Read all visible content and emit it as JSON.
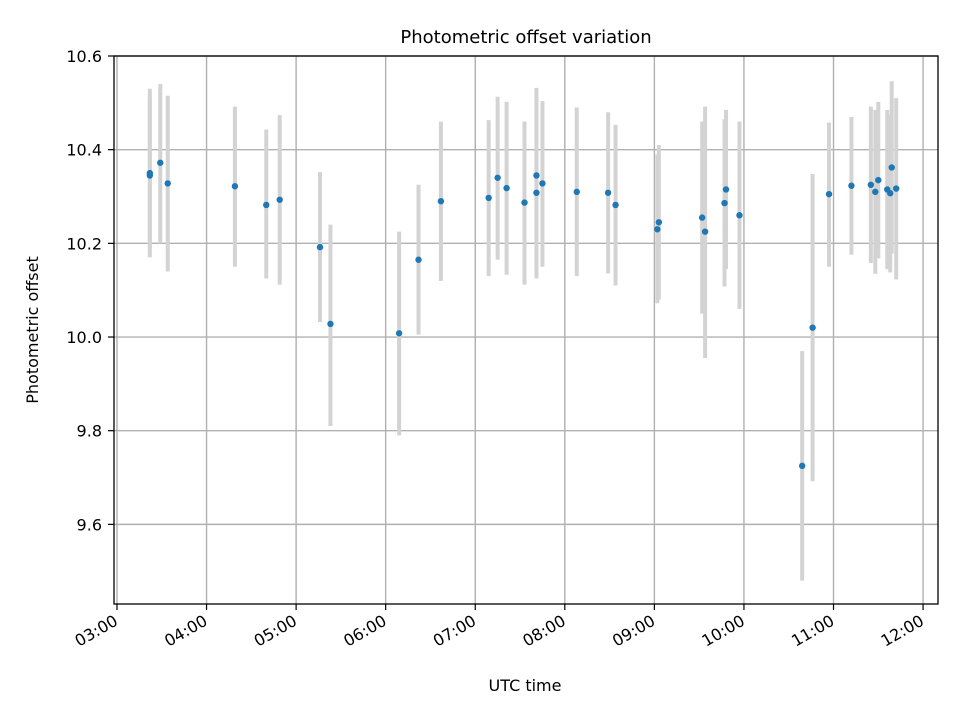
{
  "chart_data": {
    "type": "scatter",
    "title": "Photometric offset variation",
    "xlabel": "UTC time",
    "ylabel": "Photometric offset",
    "x_unit": "UTC time",
    "xlim": [
      "02:58",
      "12:10"
    ],
    "ylim": [
      9.43,
      10.6
    ],
    "x_ticks": [
      "03:00",
      "04:00",
      "05:00",
      "06:00",
      "07:00",
      "08:00",
      "09:00",
      "10:00",
      "11:00",
      "12:00"
    ],
    "y_ticks": [
      9.6,
      9.8,
      10.0,
      10.2,
      10.4,
      10.6
    ],
    "y_tick_labels": [
      "9.6",
      "9.8",
      "10.0",
      "10.2",
      "10.4",
      "10.6"
    ],
    "grid": true,
    "marker_color": "#1f77b4",
    "errorbar_color": "#d3d3d3",
    "points": [
      {
        "x": "03:22",
        "y": 10.345,
        "ylow": 10.17,
        "yhigh": 10.53
      },
      {
        "x": "03:22",
        "y": 10.35,
        "ylow": 10.19,
        "yhigh": 10.51
      },
      {
        "x": "03:29",
        "y": 10.372,
        "ylow": 10.2,
        "yhigh": 10.54
      },
      {
        "x": "03:34",
        "y": 10.328,
        "ylow": 10.14,
        "yhigh": 10.515
      },
      {
        "x": "04:19",
        "y": 10.322,
        "ylow": 10.15,
        "yhigh": 10.492
      },
      {
        "x": "04:40",
        "y": 10.282,
        "ylow": 10.125,
        "yhigh": 10.443
      },
      {
        "x": "04:49",
        "y": 10.293,
        "ylow": 10.112,
        "yhigh": 10.474
      },
      {
        "x": "05:16",
        "y": 10.192,
        "ylow": 10.032,
        "yhigh": 10.352
      },
      {
        "x": "05:23",
        "y": 10.028,
        "ylow": 9.81,
        "yhigh": 10.24
      },
      {
        "x": "06:09",
        "y": 10.008,
        "ylow": 9.79,
        "yhigh": 10.225
      },
      {
        "x": "06:22",
        "y": 10.165,
        "ylow": 10.005,
        "yhigh": 10.325
      },
      {
        "x": "06:37",
        "y": 10.29,
        "ylow": 10.12,
        "yhigh": 10.46
      },
      {
        "x": "07:09",
        "y": 10.297,
        "ylow": 10.13,
        "yhigh": 10.463
      },
      {
        "x": "07:15",
        "y": 10.34,
        "ylow": 10.165,
        "yhigh": 10.513
      },
      {
        "x": "07:21",
        "y": 10.318,
        "ylow": 10.133,
        "yhigh": 10.502
      },
      {
        "x": "07:33",
        "y": 10.287,
        "ylow": 10.112,
        "yhigh": 10.46
      },
      {
        "x": "07:41",
        "y": 10.308,
        "ylow": 10.125,
        "yhigh": 10.488
      },
      {
        "x": "07:41",
        "y": 10.345,
        "ylow": 10.152,
        "yhigh": 10.532
      },
      {
        "x": "07:45",
        "y": 10.328,
        "ylow": 10.15,
        "yhigh": 10.504
      },
      {
        "x": "08:08",
        "y": 10.31,
        "ylow": 10.13,
        "yhigh": 10.49
      },
      {
        "x": "08:29",
        "y": 10.308,
        "ylow": 10.136,
        "yhigh": 10.48
      },
      {
        "x": "08:34",
        "y": 10.282,
        "ylow": 10.11,
        "yhigh": 10.453
      },
      {
        "x": "09:02",
        "y": 10.23,
        "ylow": 10.072,
        "yhigh": 10.39
      },
      {
        "x": "09:03",
        "y": 10.245,
        "ylow": 10.08,
        "yhigh": 10.41
      },
      {
        "x": "09:32",
        "y": 10.255,
        "ylow": 10.05,
        "yhigh": 10.46
      },
      {
        "x": "09:34",
        "y": 10.225,
        "ylow": 9.955,
        "yhigh": 10.492
      },
      {
        "x": "09:47",
        "y": 10.286,
        "ylow": 10.108,
        "yhigh": 10.465
      },
      {
        "x": "09:48",
        "y": 10.315,
        "ylow": 10.145,
        "yhigh": 10.485
      },
      {
        "x": "09:57",
        "y": 10.26,
        "ylow": 10.06,
        "yhigh": 10.46
      },
      {
        "x": "10:39",
        "y": 9.725,
        "ylow": 9.48,
        "yhigh": 9.97
      },
      {
        "x": "10:46",
        "y": 10.02,
        "ylow": 9.692,
        "yhigh": 10.348
      },
      {
        "x": "10:57",
        "y": 10.305,
        "ylow": 10.15,
        "yhigh": 10.458
      },
      {
        "x": "11:12",
        "y": 10.323,
        "ylow": 10.176,
        "yhigh": 10.47
      },
      {
        "x": "11:25",
        "y": 10.325,
        "ylow": 10.158,
        "yhigh": 10.492
      },
      {
        "x": "11:28",
        "y": 10.31,
        "ylow": 10.135,
        "yhigh": 10.485
      },
      {
        "x": "11:30",
        "y": 10.335,
        "ylow": 10.168,
        "yhigh": 10.502
      },
      {
        "x": "11:36",
        "y": 10.315,
        "ylow": 10.145,
        "yhigh": 10.485
      },
      {
        "x": "11:38",
        "y": 10.307,
        "ylow": 10.138,
        "yhigh": 10.476
      },
      {
        "x": "11:39",
        "y": 10.362,
        "ylow": 10.178,
        "yhigh": 10.546
      },
      {
        "x": "11:42",
        "y": 10.317,
        "ylow": 10.123,
        "yhigh": 10.51
      }
    ]
  }
}
